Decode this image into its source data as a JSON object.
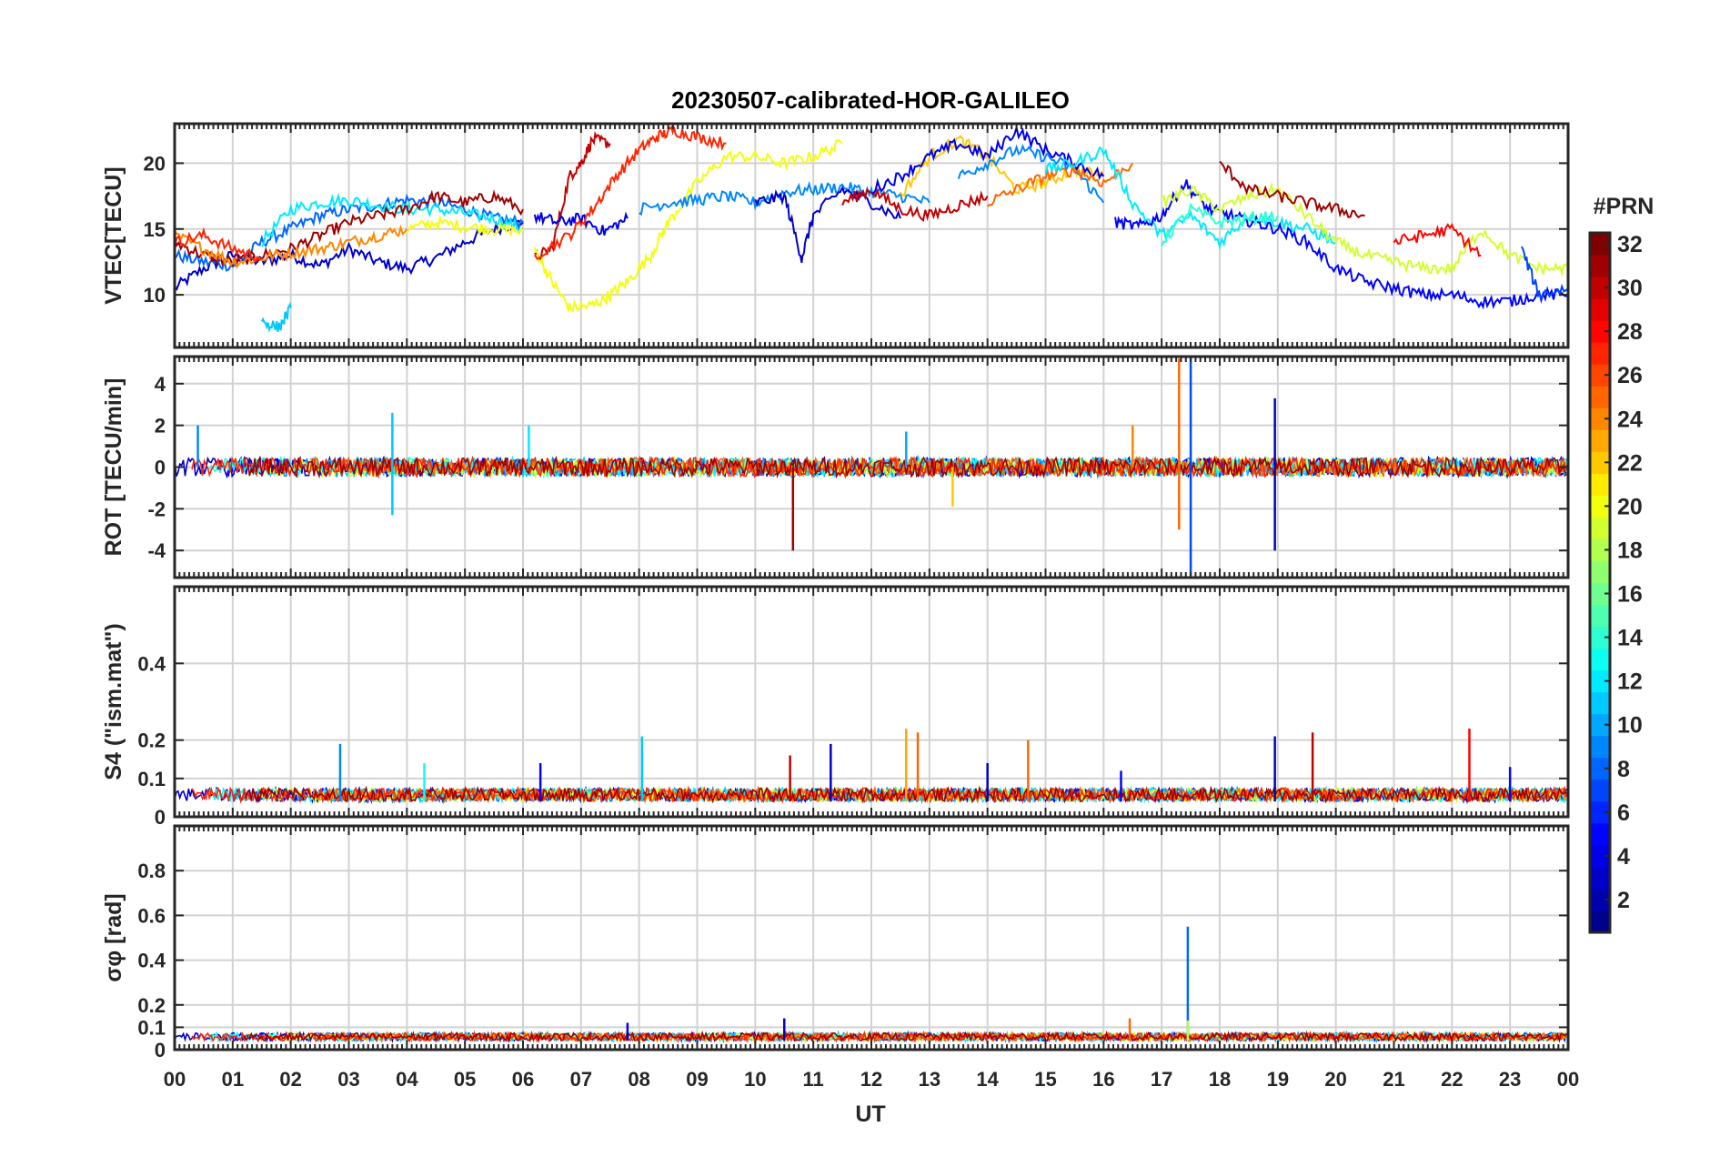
{
  "chart_data": {
    "type": "line",
    "title": "20230507-calibrated-HOR-GALILEO",
    "xlabel": "UT",
    "x_ticks": [
      "00",
      "01",
      "02",
      "03",
      "04",
      "05",
      "06",
      "07",
      "08",
      "09",
      "10",
      "11",
      "12",
      "13",
      "14",
      "15",
      "16",
      "17",
      "18",
      "19",
      "20",
      "21",
      "22",
      "23",
      "00"
    ],
    "xlim": [
      0,
      24
    ],
    "colorbar": {
      "label": "#PRN",
      "range": [
        1,
        32
      ],
      "ticks": [
        "2",
        "4",
        "6",
        "8",
        "10",
        "12",
        "14",
        "16",
        "18",
        "20",
        "22",
        "24",
        "26",
        "28",
        "30",
        "32"
      ],
      "colormap": [
        "#00008f",
        "#0000ff",
        "#007fff",
        "#00ffff",
        "#7fff7f",
        "#ffff00",
        "#ff7f00",
        "#ff0000",
        "#7f0000"
      ]
    },
    "panels": [
      {
        "name": "vtec",
        "ylabel": "VTEC[TECU]",
        "ylim": [
          6,
          23
        ],
        "yticks": [
          10,
          15,
          20
        ],
        "series": [
          {
            "prn": 3,
            "x": [
              0,
              0.5,
              1,
              1.5,
              2,
              2.5,
              3,
              3.5,
              4,
              4.5,
              5,
              5.5,
              6
            ],
            "y": [
              10.5,
              12,
              13,
              12.5,
              13,
              12.2,
              13.5,
              12.5,
              12,
              12.8,
              14,
              15,
              15.5
            ]
          },
          {
            "prn": 8,
            "x": [
              0,
              0.5,
              1,
              1.5,
              2,
              2.5,
              3,
              3.5,
              4,
              4.5,
              5,
              5.5,
              6
            ],
            "y": [
              13,
              12.5,
              12.2,
              14,
              15,
              16,
              16.5,
              16.8,
              17.2,
              17,
              16.5,
              15.8,
              15.5
            ]
          },
          {
            "prn": 12,
            "x": [
              1.5,
              2,
              2.5,
              3,
              3.5,
              4,
              4.5,
              5,
              5.5,
              6
            ],
            "y": [
              14,
              16.5,
              17,
              17.2,
              16.8,
              16.5,
              16.5,
              16.2,
              15.8,
              15
            ]
          },
          {
            "prn": 20,
            "x": [
              4,
              4.5,
              5,
              5.5,
              6
            ],
            "y": [
              15,
              15.5,
              15.2,
              15,
              14.8
            ]
          },
          {
            "prn": 31,
            "x": [
              0,
              0.5,
              1,
              1.5,
              2,
              2.5,
              3,
              3.5,
              4,
              4.5,
              5,
              5.5,
              6
            ],
            "y": [
              14,
              13,
              12.5,
              13,
              13.5,
              14.5,
              15.5,
              16,
              16.5,
              17.5,
              17,
              17.5,
              16.5
            ]
          },
          {
            "prn": 24,
            "x": [
              0,
              0.5,
              1,
              1.5,
              2,
              2.5,
              3,
              3.5,
              4
            ],
            "y": [
              14.5,
              13.5,
              12.5,
              12.8,
              13.2,
              13.5,
              14,
              14.5,
              15
            ]
          },
          {
            "prn": 27,
            "x": [
              0,
              0.5,
              1,
              1.5
            ],
            "y": [
              14,
              14.5,
              13.5,
              12.8
            ]
          },
          {
            "prn": 30,
            "x": [
              6.2,
              6.5,
              6.8,
              7,
              7.2,
              7.5
            ],
            "y": [
              12.8,
              13.5,
              19,
              20,
              21.8,
              21.5
            ]
          },
          {
            "prn": 4,
            "x": [
              6.2,
              6.6,
              7,
              7.4,
              7.8
            ],
            "y": [
              16,
              15.5,
              15.8,
              14.8,
              15.8
            ]
          },
          {
            "prn": 20,
            "x": [
              6.2,
              6.5,
              6.8,
              7.2,
              7.5,
              7.8,
              8.2,
              8.5,
              9,
              9.5,
              10,
              10.5,
              11,
              11.5
            ],
            "y": [
              13.5,
              11,
              9,
              9.2,
              10,
              11,
              13,
              15.5,
              18.5,
              20.5,
              20.5,
              20,
              20.5,
              21.5
            ]
          },
          {
            "prn": 27,
            "x": [
              6.2,
              6.8,
              7.2,
              7.6,
              8,
              8.3,
              8.6,
              9,
              9.5
            ],
            "y": [
              13,
              14.5,
              16.5,
              19,
              21,
              22,
              22.5,
              22,
              21.5
            ]
          },
          {
            "prn": 9,
            "x": [
              8,
              8.5,
              9,
              9.5,
              10,
              10.5,
              11,
              11.5,
              12,
              12.5,
              13
            ],
            "y": [
              16.5,
              17,
              17.2,
              17.5,
              17,
              17.8,
              18,
              18.2,
              17.8,
              17.5,
              17
            ]
          },
          {
            "prn": 3,
            "x": [
              10,
              10.5,
              10.8,
              11,
              11.5,
              12,
              12.5
            ],
            "y": [
              17,
              17.5,
              12.8,
              16,
              18,
              17,
              15.8
            ]
          },
          {
            "prn": 30,
            "x": [
              11.5,
              12,
              12.5,
              13,
              13.5,
              14
            ],
            "y": [
              17,
              18,
              16.5,
              16,
              16.8,
              17.5
            ]
          },
          {
            "prn": 22,
            "x": [
              12.5,
              13,
              13.5,
              14,
              14.5,
              15,
              15.5,
              16
            ],
            "y": [
              17.5,
              20.5,
              21.8,
              20.5,
              18,
              18.5,
              19.5,
              19
            ]
          },
          {
            "prn": 4,
            "x": [
              12,
              12.5,
              13,
              13.5,
              14,
              14.5,
              15,
              15.5,
              16
            ],
            "y": [
              18,
              19,
              20.5,
              21.5,
              20.5,
              22.5,
              21,
              20,
              19
            ]
          },
          {
            "prn": 9,
            "x": [
              13.5,
              14,
              14.5,
              15,
              15.5,
              16
            ],
            "y": [
              19,
              20,
              21,
              20.5,
              19.5,
              17
            ]
          },
          {
            "prn": 25,
            "x": [
              14,
              14.5,
              15,
              15.5,
              16,
              16.5
            ],
            "y": [
              17,
              18,
              19,
              19.5,
              18.5,
              20
            ]
          },
          {
            "prn": 12,
            "x": [
              15,
              15.5,
              16,
              16.5,
              17,
              17.5,
              18,
              18.5,
              19,
              19.5,
              20
            ],
            "y": [
              19.5,
              20,
              21,
              17,
              14.5,
              16,
              14,
              16,
              15.5,
              15,
              14
            ]
          },
          {
            "prn": 5,
            "x": [
              16.2,
              16.6,
              17,
              17.4,
              17.8,
              18.2,
              18.6,
              19,
              19.5,
              20,
              20.5,
              21,
              21.5,
              22,
              22.5,
              23,
              23.5,
              24
            ],
            "y": [
              15.5,
              15.2,
              16,
              18.5,
              16.5,
              16,
              15.5,
              15,
              14,
              12,
              11,
              10.5,
              10,
              10,
              9.5,
              9.5,
              10,
              10
            ]
          },
          {
            "prn": 14,
            "x": [
              17,
              17.5,
              18,
              18.5,
              19
            ],
            "y": [
              14,
              16.5,
              15.5,
              15.8,
              16
            ]
          },
          {
            "prn": 19,
            "x": [
              17,
              17.5,
              18,
              18.5,
              19,
              19.5,
              20,
              20.5,
              21,
              21.5,
              22,
              22.5,
              23,
              23.5,
              24
            ],
            "y": [
              17,
              18,
              16.5,
              17.5,
              18,
              16,
              14,
              13,
              12.5,
              12,
              12,
              15,
              13,
              12,
              12
            ]
          },
          {
            "prn": 31,
            "x": [
              18,
              18.5,
              19,
              19.5,
              20,
              20.5
            ],
            "y": [
              20,
              18,
              17.5,
              17,
              16.5,
              16
            ]
          },
          {
            "prn": 28,
            "x": [
              21,
              21.5,
              22,
              22.5
            ],
            "y": [
              14,
              14.5,
              15,
              13
            ]
          },
          {
            "prn": 7,
            "x": [
              23.2,
              23.5,
              24
            ],
            "y": [
              13.5,
              10,
              10.5
            ]
          },
          {
            "prn": 11,
            "x": [
              1.5,
              1.8,
              2
            ],
            "y": [
              8,
              7.5,
              9
            ]
          }
        ]
      },
      {
        "name": "rot",
        "ylabel": "ROT [TECU/min]",
        "ylim": [
          -5.3,
          5.3
        ],
        "yticks": [
          -4,
          -2,
          0,
          2,
          4
        ],
        "spikes": [
          {
            "prn": 9,
            "x": 0.4,
            "y": 2.0
          },
          {
            "prn": 11,
            "x": 3.75,
            "y": 2.6
          },
          {
            "prn": 11,
            "x": 3.75,
            "y": -2.3
          },
          {
            "prn": 12,
            "x": 6.1,
            "y": 2.0
          },
          {
            "prn": 31,
            "x": 10.65,
            "y": -4.0
          },
          {
            "prn": 22,
            "x": 13.4,
            "y": -1.9
          },
          {
            "prn": 25,
            "x": 17.3,
            "y": 5.2
          },
          {
            "prn": 25,
            "x": 17.3,
            "y": -3.0
          },
          {
            "prn": 7,
            "x": 17.5,
            "y": 5.3
          },
          {
            "prn": 7,
            "x": 17.5,
            "y": -5.2
          },
          {
            "prn": 3,
            "x": 18.95,
            "y": 3.3
          },
          {
            "prn": 3,
            "x": 18.95,
            "y": -4.0
          },
          {
            "prn": 24,
            "x": 16.5,
            "y": 2.0
          },
          {
            "prn": 10,
            "x": 12.6,
            "y": 1.7
          }
        ],
        "noise_amplitude": 0.45
      },
      {
        "name": "s4",
        "ylabel": "S4 (\"ism.mat\")",
        "ylim": [
          0,
          0.6
        ],
        "yticks": [
          0,
          0.1,
          0.2,
          0.4
        ],
        "baseline": 0.04,
        "spikes": [
          {
            "prn": 9,
            "x": 2.85,
            "y": 0.19
          },
          {
            "prn": 13,
            "x": 4.3,
            "y": 0.14
          },
          {
            "prn": 11,
            "x": 8.05,
            "y": 0.21
          },
          {
            "prn": 5,
            "x": 6.3,
            "y": 0.14
          },
          {
            "prn": 3,
            "x": 11.3,
            "y": 0.19
          },
          {
            "prn": 30,
            "x": 10.6,
            "y": 0.16
          },
          {
            "prn": 23,
            "x": 12.6,
            "y": 0.23
          },
          {
            "prn": 25,
            "x": 12.8,
            "y": 0.22
          },
          {
            "prn": 3,
            "x": 14.0,
            "y": 0.14
          },
          {
            "prn": 25,
            "x": 14.7,
            "y": 0.2
          },
          {
            "prn": 3,
            "x": 18.95,
            "y": 0.21
          },
          {
            "prn": 30,
            "x": 19.6,
            "y": 0.22
          },
          {
            "prn": 28,
            "x": 22.3,
            "y": 0.23
          },
          {
            "prn": 5,
            "x": 23.0,
            "y": 0.13
          },
          {
            "prn": 5,
            "x": 16.3,
            "y": 0.12
          }
        ]
      },
      {
        "name": "sigma_phi",
        "ylabel": "σφ [rad]",
        "ylim": [
          0,
          1.0
        ],
        "yticks": [
          0,
          0.1,
          0.2,
          0.4,
          0.6,
          0.8
        ],
        "baseline": 0.04,
        "spikes": [
          {
            "prn": 8,
            "x": 17.45,
            "y": 0.55
          },
          {
            "prn": 25,
            "x": 16.45,
            "y": 0.14
          },
          {
            "prn": 18,
            "x": 17.45,
            "y": 0.13
          },
          {
            "prn": 3,
            "x": 10.5,
            "y": 0.14
          },
          {
            "prn": 4,
            "x": 7.8,
            "y": 0.12
          }
        ]
      }
    ]
  }
}
